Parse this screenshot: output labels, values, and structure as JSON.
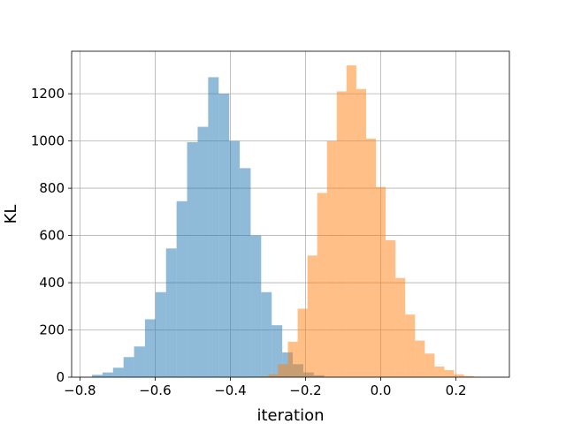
{
  "chart_data": {
    "type": "histogram",
    "title": "",
    "xlabel": "iteration",
    "ylabel": "KL",
    "xlim": [
      -0.822,
      0.342
    ],
    "ylim": [
      0,
      1380
    ],
    "xticks": [
      -0.8,
      -0.6,
      -0.4,
      -0.2,
      0.0,
      0.2
    ],
    "xtick_labels": [
      "−0.8",
      "−0.6",
      "−0.4",
      "−0.2",
      "0.0",
      "0.2"
    ],
    "yticks": [
      0,
      200,
      400,
      600,
      800,
      1000,
      1200
    ],
    "ytick_labels": [
      "0",
      "200",
      "400",
      "600",
      "800",
      "1000",
      "1200"
    ],
    "grid": true,
    "legend": "none",
    "series": [
      {
        "color": "#1f77b4",
        "alpha": 0.5,
        "bins": [
          {
            "x0": -0.768,
            "x1": -0.74,
            "count": 10
          },
          {
            "x0": -0.74,
            "x1": -0.712,
            "count": 20
          },
          {
            "x0": -0.712,
            "x1": -0.684,
            "count": 40
          },
          {
            "x0": -0.684,
            "x1": -0.656,
            "count": 85
          },
          {
            "x0": -0.656,
            "x1": -0.627,
            "count": 130
          },
          {
            "x0": -0.627,
            "x1": -0.599,
            "count": 245
          },
          {
            "x0": -0.599,
            "x1": -0.571,
            "count": 360
          },
          {
            "x0": -0.571,
            "x1": -0.543,
            "count": 545
          },
          {
            "x0": -0.543,
            "x1": -0.515,
            "count": 745
          },
          {
            "x0": -0.515,
            "x1": -0.487,
            "count": 995
          },
          {
            "x0": -0.487,
            "x1": -0.459,
            "count": 1060
          },
          {
            "x0": -0.459,
            "x1": -0.431,
            "count": 1270
          },
          {
            "x0": -0.431,
            "x1": -0.403,
            "count": 1200
          },
          {
            "x0": -0.403,
            "x1": -0.375,
            "count": 1000
          },
          {
            "x0": -0.375,
            "x1": -0.346,
            "count": 885
          },
          {
            "x0": -0.346,
            "x1": -0.318,
            "count": 600
          },
          {
            "x0": -0.318,
            "x1": -0.29,
            "count": 360
          },
          {
            "x0": -0.29,
            "x1": -0.262,
            "count": 220
          },
          {
            "x0": -0.262,
            "x1": -0.234,
            "count": 105
          },
          {
            "x0": -0.234,
            "x1": -0.206,
            "count": 55
          },
          {
            "x0": -0.206,
            "x1": -0.178,
            "count": 20
          },
          {
            "x0": -0.178,
            "x1": -0.15,
            "count": 8
          }
        ]
      },
      {
        "color": "#ff7f0e",
        "alpha": 0.5,
        "bins": [
          {
            "x0": -0.325,
            "x1": -0.299,
            "count": 3
          },
          {
            "x0": -0.299,
            "x1": -0.273,
            "count": 12
          },
          {
            "x0": -0.273,
            "x1": -0.247,
            "count": 55
          },
          {
            "x0": -0.247,
            "x1": -0.221,
            "count": 150
          },
          {
            "x0": -0.221,
            "x1": -0.195,
            "count": 290
          },
          {
            "x0": -0.195,
            "x1": -0.169,
            "count": 515
          },
          {
            "x0": -0.169,
            "x1": -0.143,
            "count": 780
          },
          {
            "x0": -0.143,
            "x1": -0.117,
            "count": 1000
          },
          {
            "x0": -0.117,
            "x1": -0.091,
            "count": 1210
          },
          {
            "x0": -0.091,
            "x1": -0.065,
            "count": 1320
          },
          {
            "x0": -0.065,
            "x1": -0.039,
            "count": 1220
          },
          {
            "x0": -0.039,
            "x1": -0.013,
            "count": 1010
          },
          {
            "x0": -0.013,
            "x1": 0.013,
            "count": 805
          },
          {
            "x0": 0.013,
            "x1": 0.039,
            "count": 580
          },
          {
            "x0": 0.039,
            "x1": 0.065,
            "count": 420
          },
          {
            "x0": 0.065,
            "x1": 0.091,
            "count": 265
          },
          {
            "x0": 0.091,
            "x1": 0.117,
            "count": 155
          },
          {
            "x0": 0.117,
            "x1": 0.143,
            "count": 100
          },
          {
            "x0": 0.143,
            "x1": 0.169,
            "count": 45
          },
          {
            "x0": 0.169,
            "x1": 0.195,
            "count": 30
          },
          {
            "x0": 0.195,
            "x1": 0.221,
            "count": 12
          },
          {
            "x0": 0.221,
            "x1": 0.247,
            "count": 5
          },
          {
            "x0": 0.247,
            "x1": 0.273,
            "count": 2
          },
          {
            "x0": 0.273,
            "x1": 0.299,
            "count": 1
          }
        ]
      }
    ]
  }
}
